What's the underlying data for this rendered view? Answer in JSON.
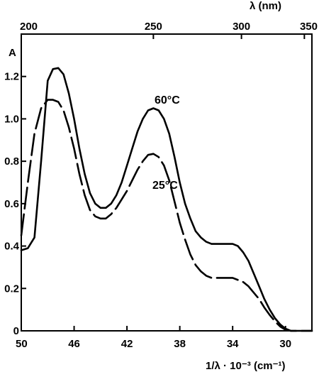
{
  "chart_data": {
    "type": "line",
    "bottom_axis": {
      "label": "1/λ · 10⁻³ (cm⁻¹)",
      "range": [
        50,
        28
      ],
      "ticks": [
        50,
        46,
        42,
        38,
        34,
        30
      ]
    },
    "top_axis": {
      "label": "λ (nm)",
      "ticks": [
        200,
        250,
        300,
        350
      ]
    },
    "left_axis": {
      "label": "A",
      "range": [
        0,
        1.4
      ],
      "ticks": [
        "0",
        "0.2",
        "0.4",
        "0.6",
        "0.8",
        "1.0",
        "1.2"
      ]
    },
    "grid": false,
    "series": [
      {
        "name": "60°C",
        "style": "solid",
        "x": [
          50.0,
          49.5,
          49.0,
          48.5,
          48.0,
          47.6,
          47.2,
          46.8,
          46.4,
          46.0,
          45.6,
          45.2,
          44.8,
          44.4,
          44.0,
          43.6,
          43.2,
          42.8,
          42.4,
          42.0,
          41.6,
          41.2,
          40.8,
          40.4,
          40.0,
          39.6,
          39.2,
          38.8,
          38.4,
          38.0,
          37.6,
          37.2,
          36.8,
          36.4,
          36.0,
          35.6,
          35.2,
          34.8,
          34.4,
          34.0,
          33.6,
          33.2,
          32.8,
          32.4,
          32.0,
          31.6,
          31.2,
          30.8,
          30.4,
          30.0,
          29.6,
          29.2,
          28.8,
          28.4,
          28.0
        ],
        "y": [
          0.38,
          0.39,
          0.44,
          0.8,
          1.18,
          1.235,
          1.24,
          1.21,
          1.12,
          1.0,
          0.86,
          0.74,
          0.65,
          0.6,
          0.58,
          0.58,
          0.6,
          0.64,
          0.7,
          0.78,
          0.86,
          0.94,
          1.0,
          1.04,
          1.05,
          1.04,
          1.0,
          0.93,
          0.82,
          0.7,
          0.6,
          0.53,
          0.47,
          0.44,
          0.42,
          0.41,
          0.41,
          0.41,
          0.41,
          0.41,
          0.4,
          0.37,
          0.33,
          0.27,
          0.21,
          0.15,
          0.1,
          0.06,
          0.03,
          0.01,
          0.0,
          0.0,
          0.0,
          0.0,
          0.0
        ]
      },
      {
        "name": "25°C",
        "style": "dashed",
        "x": [
          50.0,
          49.5,
          49.0,
          48.5,
          48.0,
          47.6,
          47.2,
          46.8,
          46.4,
          46.0,
          45.6,
          45.2,
          44.8,
          44.4,
          44.0,
          43.6,
          43.2,
          42.8,
          42.4,
          42.0,
          41.6,
          41.2,
          40.8,
          40.4,
          40.0,
          39.6,
          39.2,
          38.8,
          38.4,
          38.0,
          37.6,
          37.2,
          36.8,
          36.4,
          36.0,
          35.6,
          35.2,
          34.8,
          34.4,
          34.0,
          33.6,
          33.2,
          32.8,
          32.4,
          32.0,
          31.6,
          31.2,
          30.8,
          30.4,
          30.0,
          29.6,
          29.2,
          28.8,
          28.4,
          28.0
        ],
        "y": [
          0.45,
          0.7,
          0.93,
          1.05,
          1.09,
          1.09,
          1.08,
          1.04,
          0.96,
          0.86,
          0.74,
          0.64,
          0.57,
          0.54,
          0.53,
          0.53,
          0.55,
          0.58,
          0.62,
          0.66,
          0.71,
          0.76,
          0.8,
          0.83,
          0.835,
          0.82,
          0.78,
          0.71,
          0.61,
          0.51,
          0.43,
          0.36,
          0.31,
          0.28,
          0.26,
          0.25,
          0.25,
          0.25,
          0.25,
          0.25,
          0.24,
          0.23,
          0.21,
          0.18,
          0.15,
          0.11,
          0.075,
          0.045,
          0.02,
          0.005,
          0.0,
          0.0,
          0.0,
          0.0,
          0.0
        ]
      }
    ]
  }
}
